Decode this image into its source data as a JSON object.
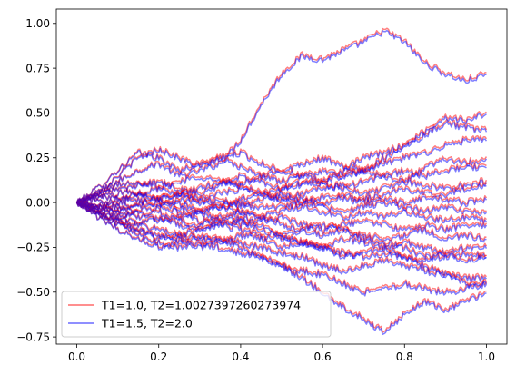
{
  "chart_data": {
    "type": "line",
    "title": "",
    "xlabel": "",
    "ylabel": "",
    "xlim": [
      -0.05,
      1.05
    ],
    "ylim": [
      -0.79,
      1.08
    ],
    "xticks": [
      0.0,
      0.2,
      0.4,
      0.6,
      0.8,
      1.0
    ],
    "xtick_labels": [
      "0.0",
      "0.2",
      "0.4",
      "0.6",
      "0.8",
      "1.0"
    ],
    "yticks": [
      -0.75,
      -0.5,
      -0.25,
      0.0,
      0.25,
      0.5,
      0.75,
      1.0
    ],
    "ytick_labels": [
      "−0.75",
      "−0.50",
      "−0.25",
      "0.00",
      "0.25",
      "0.50",
      "0.75",
      "1.00"
    ],
    "grid": false,
    "legend_position": "lower-left",
    "x": [
      0.0,
      0.05,
      0.1,
      0.15,
      0.2,
      0.25,
      0.3,
      0.35,
      0.4,
      0.45,
      0.5,
      0.55,
      0.6,
      0.65,
      0.7,
      0.75,
      0.8,
      0.85,
      0.9,
      0.95,
      1.0
    ],
    "paths": [
      [
        0.0,
        0.05,
        0.12,
        0.18,
        0.22,
        0.15,
        0.18,
        0.22,
        0.35,
        0.55,
        0.72,
        0.82,
        0.8,
        0.85,
        0.9,
        0.96,
        0.9,
        0.78,
        0.72,
        0.68,
        0.72
      ],
      [
        0.0,
        0.08,
        0.18,
        0.28,
        0.25,
        0.18,
        0.22,
        0.25,
        0.2,
        0.15,
        0.18,
        0.22,
        0.25,
        0.2,
        0.18,
        0.25,
        0.32,
        0.38,
        0.45,
        0.42,
        0.4
      ],
      [
        0.0,
        0.05,
        0.15,
        0.25,
        0.3,
        0.25,
        0.2,
        0.25,
        0.28,
        0.22,
        0.18,
        0.15,
        0.12,
        0.18,
        0.25,
        0.28,
        0.32,
        0.4,
        0.48,
        0.46,
        0.5
      ],
      [
        0.0,
        0.04,
        0.1,
        0.12,
        0.08,
        0.12,
        0.15,
        0.12,
        0.1,
        0.15,
        0.12,
        0.15,
        0.18,
        0.15,
        0.18,
        0.22,
        0.25,
        0.28,
        0.32,
        0.35,
        0.35
      ],
      [
        0.0,
        0.03,
        0.05,
        0.1,
        0.12,
        0.08,
        0.05,
        0.1,
        0.15,
        0.12,
        0.08,
        0.1,
        0.12,
        0.15,
        0.18,
        0.15,
        0.12,
        0.2,
        0.25,
        0.22,
        0.25
      ],
      [
        0.0,
        0.06,
        0.08,
        0.05,
        0.02,
        0.05,
        0.08,
        0.12,
        0.1,
        0.05,
        0.08,
        0.12,
        0.1,
        0.08,
        0.12,
        0.15,
        0.18,
        0.15,
        0.18,
        0.2,
        0.2
      ],
      [
        0.0,
        -0.02,
        0.02,
        0.05,
        0.08,
        0.05,
        0.02,
        0.05,
        0.08,
        0.05,
        0.02,
        0.05,
        0.08,
        0.1,
        0.05,
        0.08,
        0.12,
        0.1,
        0.08,
        0.1,
        0.12
      ],
      [
        0.0,
        0.02,
        -0.02,
        0.0,
        0.03,
        0.05,
        0.02,
        -0.02,
        0.02,
        0.05,
        0.02,
        0.0,
        0.03,
        0.05,
        0.02,
        0.05,
        0.08,
        0.05,
        0.05,
        0.08,
        0.1
      ],
      [
        0.0,
        -0.03,
        0.0,
        0.02,
        -0.02,
        0.02,
        0.0,
        0.02,
        -0.02,
        0.02,
        0.05,
        0.02,
        0.0,
        0.03,
        0.0,
        0.02,
        0.0,
        0.03,
        0.02,
        0.0,
        0.02
      ],
      [
        0.0,
        -0.02,
        -0.05,
        -0.02,
        0.0,
        -0.03,
        -0.05,
        -0.02,
        0.0,
        -0.03,
        -0.02,
        0.0,
        -0.02,
        -0.05,
        -0.02,
        0.0,
        -0.02,
        -0.05,
        -0.02,
        -0.05,
        -0.05
      ],
      [
        0.0,
        -0.05,
        -0.08,
        -0.05,
        -0.02,
        -0.05,
        -0.1,
        -0.08,
        -0.05,
        -0.08,
        -0.05,
        -0.02,
        -0.05,
        -0.08,
        -0.05,
        -0.08,
        -0.05,
        -0.08,
        -0.1,
        -0.08,
        -0.1
      ],
      [
        0.0,
        -0.04,
        -0.02,
        -0.06,
        -0.1,
        -0.08,
        -0.05,
        -0.1,
        -0.12,
        -0.1,
        -0.08,
        -0.12,
        -0.15,
        -0.12,
        -0.1,
        -0.12,
        -0.15,
        -0.12,
        -0.15,
        -0.12,
        -0.12
      ],
      [
        0.0,
        -0.06,
        -0.1,
        -0.12,
        -0.08,
        -0.12,
        -0.15,
        -0.12,
        -0.1,
        -0.15,
        -0.18,
        -0.15,
        -0.12,
        -0.15,
        -0.18,
        -0.2,
        -0.18,
        -0.15,
        -0.2,
        -0.18,
        -0.2
      ],
      [
        0.0,
        -0.05,
        -0.1,
        -0.15,
        -0.2,
        -0.18,
        -0.15,
        -0.12,
        -0.15,
        -0.18,
        -0.2,
        -0.22,
        -0.25,
        -0.2,
        -0.22,
        -0.25,
        -0.22,
        -0.25,
        -0.28,
        -0.25,
        -0.25
      ],
      [
        0.0,
        -0.03,
        -0.08,
        -0.12,
        -0.15,
        -0.18,
        -0.2,
        -0.22,
        -0.18,
        -0.2,
        -0.25,
        -0.22,
        -0.25,
        -0.28,
        -0.3,
        -0.28,
        -0.3,
        -0.32,
        -0.3,
        -0.28,
        -0.3
      ],
      [
        0.0,
        -0.08,
        -0.15,
        -0.2,
        -0.25,
        -0.22,
        -0.18,
        -0.2,
        -0.22,
        -0.25,
        -0.28,
        -0.3,
        -0.35,
        -0.38,
        -0.35,
        -0.32,
        -0.35,
        -0.38,
        -0.4,
        -0.42,
        -0.42
      ],
      [
        0.0,
        -0.05,
        -0.12,
        -0.18,
        -0.22,
        -0.25,
        -0.22,
        -0.25,
        -0.28,
        -0.3,
        -0.35,
        -0.38,
        -0.4,
        -0.45,
        -0.5,
        -0.48,
        -0.45,
        -0.48,
        -0.5,
        -0.48,
        -0.45
      ],
      [
        0.0,
        -0.06,
        -0.12,
        -0.15,
        -0.18,
        -0.2,
        -0.25,
        -0.2,
        -0.25,
        -0.3,
        -0.35,
        -0.42,
        -0.5,
        -0.58,
        -0.65,
        -0.72,
        -0.62,
        -0.55,
        -0.6,
        -0.55,
        -0.5
      ],
      [
        0.0,
        -0.02,
        -0.05,
        -0.08,
        -0.05,
        -0.1,
        -0.12,
        -0.1,
        -0.08,
        -0.12,
        -0.18,
        -0.22,
        -0.25,
        -0.3,
        -0.28,
        -0.25,
        -0.3,
        -0.35,
        -0.4,
        -0.45,
        -0.45
      ],
      [
        0.0,
        0.04,
        0.02,
        0.05,
        0.02,
        0.0,
        -0.05,
        -0.02,
        -0.05,
        -0.08,
        -0.12,
        -0.15,
        -0.18,
        -0.15,
        -0.2,
        -0.22,
        -0.25,
        -0.3,
        -0.28,
        -0.32,
        -0.3
      ]
    ],
    "series": [
      {
        "name": "T1=1.0, T2=1.0027397260273974",
        "color": "#ff0000",
        "opacity": 0.5
      },
      {
        "name": "T1=1.5, T2=2.0",
        "color": "#0000ff",
        "opacity": 0.5
      }
    ]
  }
}
